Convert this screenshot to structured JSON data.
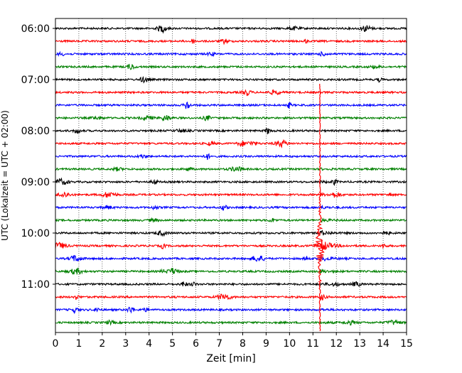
{
  "chart_data": {
    "type": "line",
    "title": "",
    "xlabel": "Zeit  [min]",
    "ylabel": "UTC (Lokalzeit = UTC + 02:00)",
    "xlim": [
      0,
      15
    ],
    "xticks": [
      0,
      1,
      2,
      3,
      4,
      5,
      6,
      7,
      8,
      9,
      10,
      11,
      12,
      13,
      14,
      15
    ],
    "grid": "vertical dotted",
    "legend": "none",
    "traces_per_hour": 4,
    "trace_interval_minutes": 15,
    "yticks": [
      {
        "label": "06:00",
        "trace_index": 0
      },
      {
        "label": "07:00",
        "trace_index": 4
      },
      {
        "label": "08:00",
        "trace_index": 8
      },
      {
        "label": "09:00",
        "trace_index": 12
      },
      {
        "label": "10:00",
        "trace_index": 16
      },
      {
        "label": "11:00",
        "trace_index": 20
      }
    ],
    "series_colors": [
      "#000000",
      "#ff0000",
      "#0000ff",
      "#008000"
    ],
    "traces": [
      {
        "start": "06:00",
        "color": "#000000"
      },
      {
        "start": "06:15",
        "color": "#ff0000"
      },
      {
        "start": "06:30",
        "color": "#0000ff"
      },
      {
        "start": "06:45",
        "color": "#008000"
      },
      {
        "start": "07:00",
        "color": "#000000"
      },
      {
        "start": "07:15",
        "color": "#ff0000"
      },
      {
        "start": "07:30",
        "color": "#0000ff"
      },
      {
        "start": "07:45",
        "color": "#008000"
      },
      {
        "start": "08:00",
        "color": "#000000"
      },
      {
        "start": "08:15",
        "color": "#ff0000"
      },
      {
        "start": "08:30",
        "color": "#0000ff"
      },
      {
        "start": "08:45",
        "color": "#008000"
      },
      {
        "start": "09:00",
        "color": "#000000"
      },
      {
        "start": "09:15",
        "color": "#ff0000"
      },
      {
        "start": "09:30",
        "color": "#0000ff"
      },
      {
        "start": "09:45",
        "color": "#008000"
      },
      {
        "start": "10:00",
        "color": "#000000"
      },
      {
        "start": "10:15",
        "color": "#ff0000"
      },
      {
        "start": "10:30",
        "color": "#0000ff"
      },
      {
        "start": "10:45",
        "color": "#008000"
      },
      {
        "start": "11:00",
        "color": "#000000"
      },
      {
        "start": "11:15",
        "color": "#ff0000"
      },
      {
        "start": "11:30",
        "color": "#0000ff"
      },
      {
        "start": "11:45",
        "color": "#008000"
      }
    ],
    "event": {
      "trace_start": "10:15",
      "minute": 11.3,
      "color": "#ff0000"
    }
  }
}
